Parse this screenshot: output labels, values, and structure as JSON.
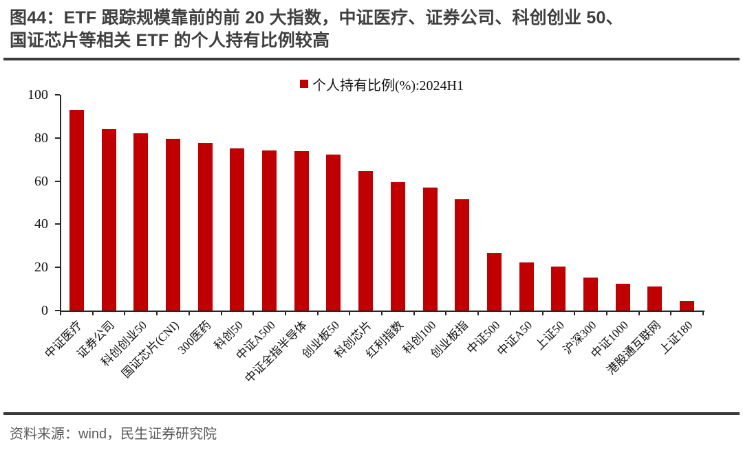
{
  "figure": {
    "title_line1": "图44：ETF 跟踪规模靠前的前 20 大指数，中证医疗、证券公司、科创创业 50、",
    "title_line2": "国证芯片等相关 ETF 的个人持有比例较高"
  },
  "chart_data": {
    "type": "bar",
    "title": "",
    "legend": "个人持有比例(%):2024H1",
    "legend_position": "top-center",
    "grid": false,
    "bar_color": "#C00000",
    "ylim": [
      0,
      100
    ],
    "yticks": [
      0,
      20,
      40,
      60,
      80,
      100
    ],
    "categories": [
      "中证医疗",
      "证券公司",
      "科创创业50",
      "国证芯片(CNI)",
      "300医药",
      "科创50",
      "中证A500",
      "中证全指半导体",
      "创业板50",
      "科创芯片",
      "红利指数",
      "科创100",
      "创业板指",
      "中证500",
      "中证A50",
      "上证50",
      "沪深300",
      "中证1000",
      "港股通互联网",
      "上证180"
    ],
    "values": [
      92.9,
      84.2,
      82.2,
      79.7,
      77.6,
      75.3,
      74.2,
      73.9,
      72.2,
      64.7,
      59.4,
      56.9,
      51.6,
      26.9,
      22.4,
      20.3,
      15.2,
      12.4,
      11.1,
      4.3
    ]
  },
  "footer": {
    "source": "资料来源：wind，民生证券研究院"
  },
  "colors": {
    "bar": "#C00000",
    "title": "#3F3F3F",
    "axis": "#262626",
    "rule": "#3B3B3B",
    "source_text": "#595959"
  }
}
